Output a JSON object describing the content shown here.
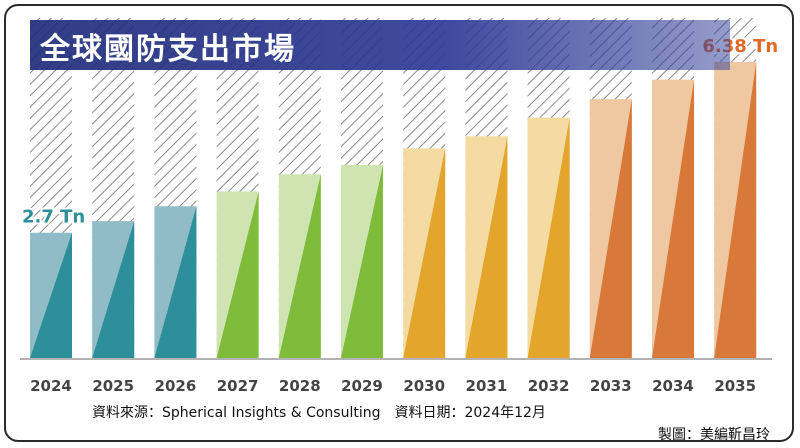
{
  "title": "全球國防支出市場",
  "source": "資料來源：Spherical Insights & Consulting　資料日期：2024年12月",
  "credit": "製圖：美編靳昌玲",
  "chart_data": {
    "type": "bar",
    "categories": [
      "2024",
      "2025",
      "2026",
      "2027",
      "2028",
      "2029",
      "2030",
      "2031",
      "2032",
      "2033",
      "2034",
      "2035"
    ],
    "values": [
      2.7,
      2.95,
      3.27,
      3.59,
      3.96,
      4.16,
      4.52,
      4.78,
      5.18,
      5.58,
      6.0,
      6.38
    ],
    "unit": "Tn",
    "ylim": [
      0,
      7
    ],
    "annotations": [
      {
        "category": "2024",
        "text": "2.7 Tn"
      },
      {
        "category": "2035",
        "text": "6.38 Tn"
      }
    ],
    "colors": {
      "2024": [
        "#8fbcc6",
        "#2e8f9a"
      ],
      "2025": [
        "#8fbcc6",
        "#2e8f9a"
      ],
      "2026": [
        "#8fbcc6",
        "#2e8f9a"
      ],
      "2027": [
        "#cfe4b0",
        "#7fbc3c"
      ],
      "2028": [
        "#cfe4b0",
        "#7fbc3c"
      ],
      "2029": [
        "#cfe4b0",
        "#7fbc3c"
      ],
      "2030": [
        "#f4dba2",
        "#e3a52b"
      ],
      "2031": [
        "#f4dba2",
        "#e3a52b"
      ],
      "2032": [
        "#f4dba2",
        "#e3a52b"
      ],
      "2033": [
        "#efc7a1",
        "#d8793a"
      ],
      "2034": [
        "#efc7a1",
        "#d8793a"
      ],
      "2035": [
        "#efc7a1",
        "#d8793a"
      ]
    },
    "annotation_colors": {
      "2024": "#2e8f9a",
      "2035": "#e06a28"
    },
    "hatch_color": "#7a7a7a",
    "grid": false,
    "legend": "none"
  }
}
